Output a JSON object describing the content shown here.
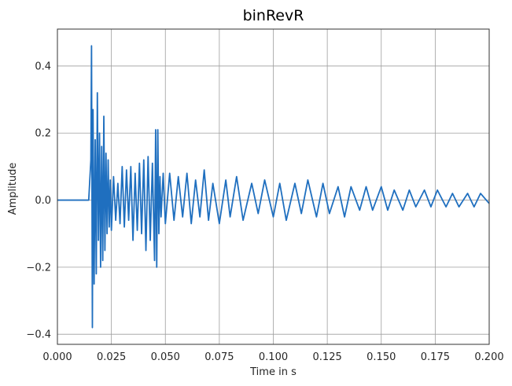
{
  "chart_data": {
    "type": "line",
    "title": "binRevR",
    "xlabel": "Time in s",
    "ylabel": "Amplitude",
    "xlim": [
      0.0,
      0.2
    ],
    "ylim": [
      -0.43,
      0.51
    ],
    "grid": true,
    "x_ticks": [
      0.0,
      0.025,
      0.05,
      0.075,
      0.1,
      0.125,
      0.15,
      0.175,
      0.2
    ],
    "x_tick_labels": [
      "0.000",
      "0.025",
      "0.050",
      "0.075",
      "0.100",
      "0.125",
      "0.150",
      "0.175",
      "0.200"
    ],
    "y_ticks": [
      -0.4,
      -0.2,
      0.0,
      0.2,
      0.4
    ],
    "y_tick_labels": [
      "−0.4",
      "−0.2",
      "0.0",
      "0.2",
      "0.4"
    ],
    "series": [
      {
        "color": "#1f6fbf",
        "x": [
          0.0,
          0.013,
          0.0145,
          0.0155,
          0.0158,
          0.0162,
          0.0165,
          0.017,
          0.0175,
          0.018,
          0.0185,
          0.019,
          0.0195,
          0.02,
          0.0205,
          0.021,
          0.0215,
          0.022,
          0.0225,
          0.023,
          0.0235,
          0.024,
          0.0245,
          0.025,
          0.026,
          0.027,
          0.028,
          0.029,
          0.03,
          0.031,
          0.032,
          0.033,
          0.034,
          0.035,
          0.036,
          0.037,
          0.038,
          0.039,
          0.04,
          0.041,
          0.042,
          0.043,
          0.044,
          0.045,
          0.0455,
          0.046,
          0.0465,
          0.047,
          0.0475,
          0.048,
          0.049,
          0.05,
          0.052,
          0.054,
          0.056,
          0.058,
          0.06,
          0.062,
          0.064,
          0.066,
          0.068,
          0.07,
          0.072,
          0.075,
          0.078,
          0.08,
          0.083,
          0.086,
          0.09,
          0.093,
          0.096,
          0.1,
          0.103,
          0.106,
          0.11,
          0.113,
          0.116,
          0.12,
          0.123,
          0.126,
          0.13,
          0.133,
          0.136,
          0.14,
          0.143,
          0.146,
          0.15,
          0.153,
          0.156,
          0.16,
          0.163,
          0.166,
          0.17,
          0.173,
          0.176,
          0.18,
          0.183,
          0.186,
          0.19,
          0.193,
          0.196,
          0.2
        ],
        "y": [
          0.0,
          0.0,
          0.0,
          0.12,
          0.46,
          -0.38,
          0.27,
          -0.25,
          0.18,
          -0.22,
          0.32,
          -0.12,
          0.2,
          -0.2,
          0.16,
          -0.18,
          0.25,
          -0.15,
          0.14,
          -0.1,
          0.12,
          -0.08,
          0.06,
          -0.09,
          0.07,
          -0.06,
          0.05,
          -0.07,
          0.1,
          -0.08,
          0.09,
          -0.06,
          0.1,
          -0.12,
          0.08,
          -0.09,
          0.11,
          -0.1,
          0.12,
          -0.15,
          0.13,
          -0.12,
          0.11,
          -0.18,
          0.21,
          -0.2,
          0.21,
          -0.1,
          0.07,
          -0.05,
          0.08,
          -0.07,
          0.08,
          -0.06,
          0.07,
          -0.05,
          0.08,
          -0.07,
          0.06,
          -0.05,
          0.09,
          -0.06,
          0.05,
          -0.07,
          0.06,
          -0.05,
          0.07,
          -0.06,
          0.05,
          -0.04,
          0.06,
          -0.05,
          0.05,
          -0.06,
          0.05,
          -0.04,
          0.06,
          -0.05,
          0.05,
          -0.04,
          0.04,
          -0.05,
          0.04,
          -0.03,
          0.04,
          -0.03,
          0.04,
          -0.03,
          0.03,
          -0.03,
          0.03,
          -0.02,
          0.03,
          -0.02,
          0.03,
          -0.02,
          0.02,
          -0.02,
          0.02,
          -0.02,
          0.02,
          -0.01
        ]
      }
    ]
  }
}
